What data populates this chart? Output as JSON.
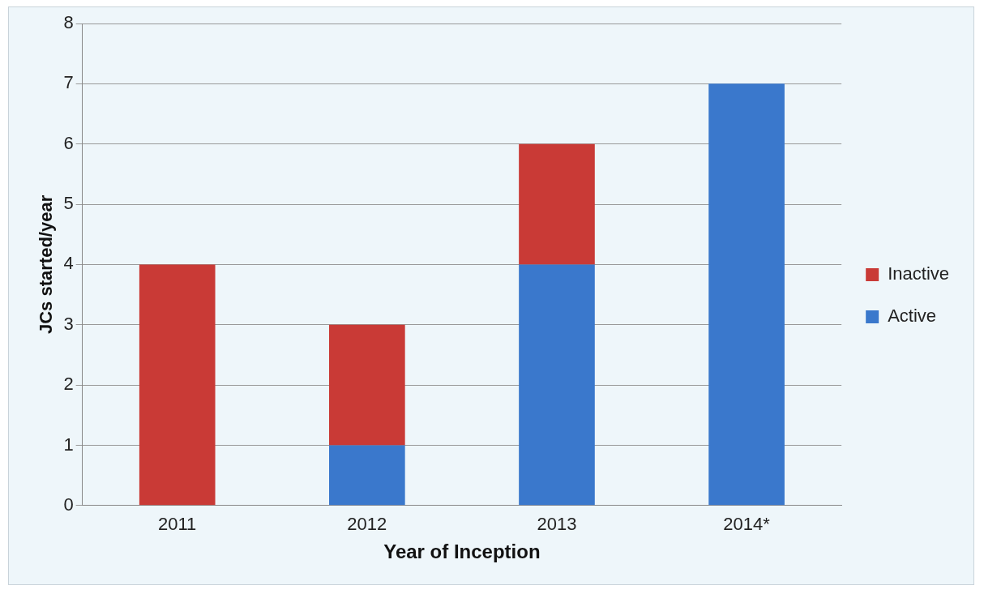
{
  "chart_data": {
    "type": "bar",
    "stacked": true,
    "xlabel": "Year of Inception",
    "ylabel": "JCs started/year",
    "categories": [
      "2011",
      "2012",
      "2013",
      "2014*"
    ],
    "series": [
      {
        "name": "Active",
        "color": "#3a78cc",
        "values": [
          0,
          1,
          4,
          7
        ]
      },
      {
        "name": "Inactive",
        "color": "#c93a36",
        "values": [
          4,
          2,
          2,
          0
        ]
      }
    ],
    "ylim": [
      0,
      8
    ],
    "yticks": [
      0,
      1,
      2,
      3,
      4,
      5,
      6,
      7,
      8
    ],
    "grid": "y",
    "legend": "right"
  }
}
